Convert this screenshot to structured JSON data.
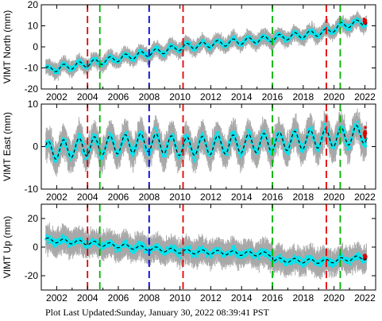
{
  "footer": {
    "label": "Plot Last Updated:",
    "value": "Sunday, January 30, 2022 08:39:41 PST"
  },
  "colors": {
    "data": "#00e5ee",
    "error": "#a8a8a8",
    "model": "#000000",
    "recent": "#dd0000",
    "vline_red": "#e60000",
    "vline_green": "#00b400",
    "vline_blue": "#0000dd"
  },
  "chart_data": [
    {
      "type": "scatter",
      "ylabel": "VIMT North (mm)",
      "xlim": [
        2001,
        2022.7
      ],
      "ylim": [
        -20,
        20
      ],
      "yticks": [
        -20,
        -10,
        0,
        10,
        20
      ],
      "xticks": [
        2002,
        2004,
        2006,
        2008,
        2010,
        2012,
        2014,
        2016,
        2018,
        2020,
        2022
      ],
      "vlines": [
        {
          "x": 2004.0,
          "color": "red"
        },
        {
          "x": 2004.8,
          "color": "green"
        },
        {
          "x": 2008.0,
          "color": "blue"
        },
        {
          "x": 2010.2,
          "color": "red"
        },
        {
          "x": 2016.0,
          "color": "green"
        },
        {
          "x": 2019.5,
          "color": "red"
        },
        {
          "x": 2020.4,
          "color": "green"
        }
      ],
      "trend": [
        {
          "x": 2001.3,
          "y": -11
        },
        {
          "x": 2004.0,
          "y": -8
        },
        {
          "x": 2004.8,
          "y": -7
        },
        {
          "x": 2008.0,
          "y": -3
        },
        {
          "x": 2010.2,
          "y": 0
        },
        {
          "x": 2016.0,
          "y": 4
        },
        {
          "x": 2019.5,
          "y": 7
        },
        {
          "x": 2020.4,
          "y": 10
        },
        {
          "x": 2022.1,
          "y": 12
        }
      ],
      "seasonal_amplitude": 1.5,
      "scatter_spread": 2.0,
      "error_spread": 4.0
    },
    {
      "type": "scatter",
      "ylabel": "VIMT East (mm)",
      "xlim": [
        2001,
        2022.7
      ],
      "ylim": [
        -10,
        10
      ],
      "yticks": [
        -10,
        0,
        10
      ],
      "xticks": [
        2002,
        2004,
        2006,
        2008,
        2010,
        2012,
        2014,
        2016,
        2018,
        2020,
        2022
      ],
      "vlines": [
        {
          "x": 2004.0,
          "color": "red"
        },
        {
          "x": 2004.8,
          "color": "green"
        },
        {
          "x": 2008.0,
          "color": "blue"
        },
        {
          "x": 2010.2,
          "color": "red"
        },
        {
          "x": 2016.0,
          "color": "green"
        },
        {
          "x": 2019.5,
          "color": "red"
        },
        {
          "x": 2020.4,
          "color": "green"
        }
      ],
      "trend": [
        {
          "x": 2001.3,
          "y": -1
        },
        {
          "x": 2004.0,
          "y": 0
        },
        {
          "x": 2008.0,
          "y": 1
        },
        {
          "x": 2010.2,
          "y": 0
        },
        {
          "x": 2016.0,
          "y": 1
        },
        {
          "x": 2019.5,
          "y": 2
        },
        {
          "x": 2022.1,
          "y": 3
        }
      ],
      "seasonal_amplitude": 2.2,
      "scatter_spread": 2.0,
      "error_spread": 4.0
    },
    {
      "type": "scatter",
      "ylabel": "VIMT Up (mm)",
      "xlim": [
        2001,
        2022.7
      ],
      "ylim": [
        -30,
        30
      ],
      "yticks": [
        -20,
        0,
        20
      ],
      "xticks": [
        2002,
        2004,
        2006,
        2008,
        2010,
        2012,
        2014,
        2016,
        2018,
        2020,
        2022
      ],
      "vlines": [
        {
          "x": 2004.0,
          "color": "red"
        },
        {
          "x": 2004.8,
          "color": "green"
        },
        {
          "x": 2008.0,
          "color": "blue"
        },
        {
          "x": 2010.2,
          "color": "red"
        },
        {
          "x": 2016.0,
          "color": "green"
        },
        {
          "x": 2019.5,
          "color": "red"
        },
        {
          "x": 2020.4,
          "color": "green"
        }
      ],
      "trend": [
        {
          "x": 2001.3,
          "y": 5
        },
        {
          "x": 2004.0,
          "y": 3
        },
        {
          "x": 2008.0,
          "y": -1
        },
        {
          "x": 2010.2,
          "y": -3
        },
        {
          "x": 2016.0,
          "y": -5
        },
        {
          "x": 2016.05,
          "y": -9
        },
        {
          "x": 2019.5,
          "y": -10
        },
        {
          "x": 2022.1,
          "y": -7
        }
      ],
      "seasonal_amplitude": 1.5,
      "scatter_spread": 5.0,
      "error_spread": 10.0
    }
  ]
}
